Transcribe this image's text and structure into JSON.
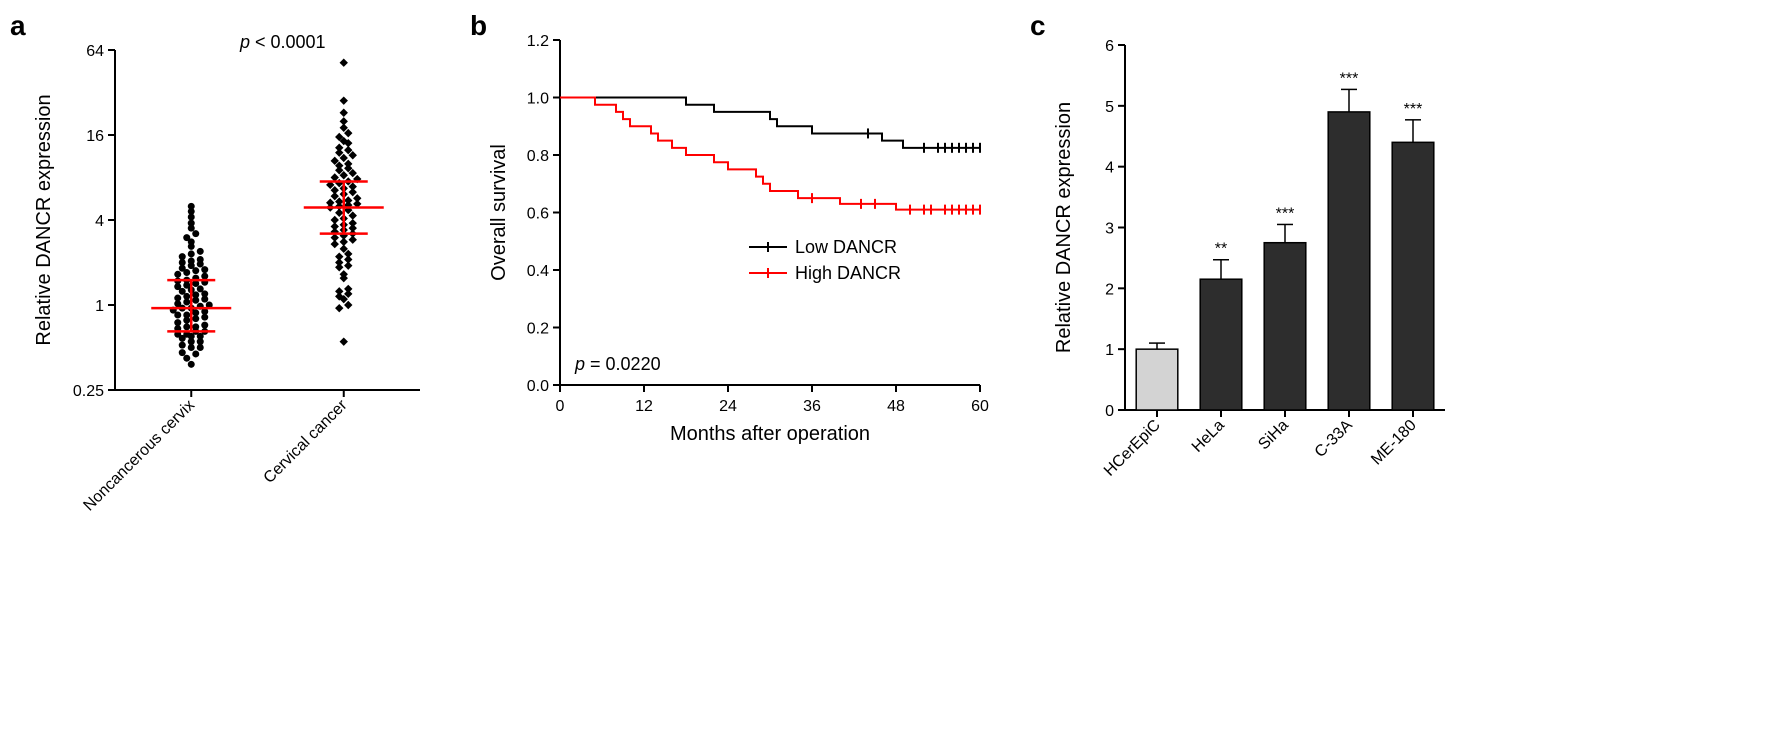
{
  "panelA": {
    "label": "a",
    "type": "scatter",
    "ylabel": "Relative DANCR expression",
    "yscale": "log2",
    "ylim": [
      0.25,
      64
    ],
    "yticks": [
      0.25,
      1,
      4,
      16,
      64
    ],
    "ytick_labels": [
      "0.25",
      "1",
      "4",
      "16",
      "64"
    ],
    "categories": [
      "Noncancerous cervix",
      "Cervical cancer"
    ],
    "pvalue_text": "p < 0.0001",
    "median_iqr": [
      {
        "median": 0.95,
        "q1": 0.65,
        "q3": 1.5
      },
      {
        "median": 4.9,
        "q1": 3.2,
        "q3": 7.5
      }
    ],
    "scatter_markers": [
      "circle",
      "diamond"
    ],
    "marker_color": "#000000",
    "error_color": "#ff0000",
    "data": [
      [
        0.38,
        0.42,
        0.45,
        0.46,
        0.5,
        0.5,
        0.52,
        0.55,
        0.55,
        0.58,
        0.6,
        0.6,
        0.62,
        0.62,
        0.65,
        0.65,
        0.68,
        0.7,
        0.7,
        0.72,
        0.75,
        0.78,
        0.8,
        0.82,
        0.85,
        0.85,
        0.88,
        0.9,
        0.92,
        0.95,
        0.95,
        0.98,
        1.0,
        1.02,
        1.05,
        1.08,
        1.1,
        1.12,
        1.15,
        1.18,
        1.2,
        1.25,
        1.28,
        1.3,
        1.35,
        1.38,
        1.42,
        1.45,
        1.48,
        1.5,
        1.55,
        1.6,
        1.65,
        1.7,
        1.75,
        1.78,
        1.82,
        1.9,
        1.95,
        2.0,
        2.05,
        2.1,
        2.2,
        2.3,
        2.4,
        2.6,
        2.8,
        3.0,
        3.2,
        3.5,
        3.8,
        4.2,
        4.6,
        5.0
      ],
      [
        0.55,
        0.95,
        1.0,
        1.1,
        1.15,
        1.2,
        1.25,
        1.3,
        1.55,
        1.65,
        1.85,
        1.9,
        2.0,
        2.1,
        2.2,
        2.3,
        2.5,
        2.7,
        2.8,
        2.9,
        3.0,
        3.1,
        3.2,
        3.3,
        3.4,
        3.5,
        3.6,
        3.7,
        3.8,
        4.0,
        4.1,
        4.3,
        4.5,
        4.7,
        4.9,
        5.0,
        5.1,
        5.2,
        5.3,
        5.4,
        5.5,
        5.7,
        5.9,
        6.1,
        6.3,
        6.5,
        6.7,
        6.9,
        7.1,
        7.3,
        7.5,
        7.8,
        8.0,
        8.3,
        8.6,
        9.0,
        9.3,
        9.7,
        10.0,
        10.5,
        11.0,
        11.5,
        12.0,
        12.5,
        13.0,
        14.0,
        14.5,
        15.5,
        16.5,
        18.0,
        20.0,
        23.0,
        28.0,
        52.0
      ]
    ],
    "label_fontsize": 20,
    "tick_fontsize": 16
  },
  "panelB": {
    "label": "b",
    "type": "kaplan-meier",
    "ylabel": "Overall survival",
    "xlabel": "Months after operation",
    "ylim": [
      0,
      1.2
    ],
    "ytick_step": 0.2,
    "xlim": [
      0,
      60
    ],
    "xtick_step": 12,
    "pvalue_text": "p = 0.0220",
    "legend": [
      {
        "label": "Low DANCR",
        "color": "#000000"
      },
      {
        "label": "High DANCR",
        "color": "#ff0000"
      }
    ],
    "low": [
      {
        "t": 0,
        "s": 1.0
      },
      {
        "t": 18,
        "s": 1.0
      },
      {
        "t": 18,
        "s": 0.975
      },
      {
        "t": 22,
        "s": 0.975
      },
      {
        "t": 22,
        "s": 0.95
      },
      {
        "t": 30,
        "s": 0.95
      },
      {
        "t": 30,
        "s": 0.925
      },
      {
        "t": 31,
        "s": 0.925
      },
      {
        "t": 31,
        "s": 0.9
      },
      {
        "t": 36,
        "s": 0.9
      },
      {
        "t": 36,
        "s": 0.875
      },
      {
        "t": 46,
        "s": 0.875
      },
      {
        "t": 46,
        "s": 0.85
      },
      {
        "t": 49,
        "s": 0.85
      },
      {
        "t": 49,
        "s": 0.825
      },
      {
        "t": 60,
        "s": 0.825
      }
    ],
    "low_censor": [
      44,
      52,
      54,
      55,
      56,
      57,
      58,
      59,
      60
    ],
    "high": [
      {
        "t": 0,
        "s": 1.0
      },
      {
        "t": 5,
        "s": 1.0
      },
      {
        "t": 5,
        "s": 0.975
      },
      {
        "t": 8,
        "s": 0.975
      },
      {
        "t": 8,
        "s": 0.95
      },
      {
        "t": 9,
        "s": 0.95
      },
      {
        "t": 9,
        "s": 0.925
      },
      {
        "t": 10,
        "s": 0.925
      },
      {
        "t": 10,
        "s": 0.9
      },
      {
        "t": 13,
        "s": 0.9
      },
      {
        "t": 13,
        "s": 0.875
      },
      {
        "t": 14,
        "s": 0.875
      },
      {
        "t": 14,
        "s": 0.85
      },
      {
        "t": 16,
        "s": 0.85
      },
      {
        "t": 16,
        "s": 0.825
      },
      {
        "t": 18,
        "s": 0.825
      },
      {
        "t": 18,
        "s": 0.8
      },
      {
        "t": 22,
        "s": 0.8
      },
      {
        "t": 22,
        "s": 0.775
      },
      {
        "t": 24,
        "s": 0.775
      },
      {
        "t": 24,
        "s": 0.75
      },
      {
        "t": 28,
        "s": 0.75
      },
      {
        "t": 28,
        "s": 0.725
      },
      {
        "t": 29,
        "s": 0.725
      },
      {
        "t": 29,
        "s": 0.7
      },
      {
        "t": 30,
        "s": 0.7
      },
      {
        "t": 30,
        "s": 0.675
      },
      {
        "t": 34,
        "s": 0.675
      },
      {
        "t": 34,
        "s": 0.65
      },
      {
        "t": 40,
        "s": 0.65
      },
      {
        "t": 40,
        "s": 0.63
      },
      {
        "t": 48,
        "s": 0.63
      },
      {
        "t": 48,
        "s": 0.61
      },
      {
        "t": 60,
        "s": 0.61
      }
    ],
    "high_censor": [
      36,
      43,
      45,
      50,
      52,
      53,
      55,
      56,
      57,
      58,
      59,
      60
    ],
    "line_width": 2,
    "label_fontsize": 20,
    "tick_fontsize": 16
  },
  "panelC": {
    "label": "c",
    "type": "bar",
    "ylabel": "Relative DANCR expression",
    "ylim": [
      0,
      6
    ],
    "ytick_step": 1,
    "categories": [
      "HCerEpiC",
      "HeLa",
      "SiHa",
      "C-33A",
      "ME-180"
    ],
    "values": [
      1.0,
      2.15,
      2.75,
      4.9,
      4.4
    ],
    "errors": [
      0.1,
      0.32,
      0.3,
      0.37,
      0.37
    ],
    "sig": [
      "",
      "**",
      "***",
      "***",
      "***"
    ],
    "bar_colors": [
      "#d3d3d3",
      "#2d2d2d",
      "#2d2d2d",
      "#2d2d2d",
      "#2d2d2d"
    ],
    "bar_width": 0.65,
    "label_fontsize": 20,
    "tick_fontsize": 16
  }
}
